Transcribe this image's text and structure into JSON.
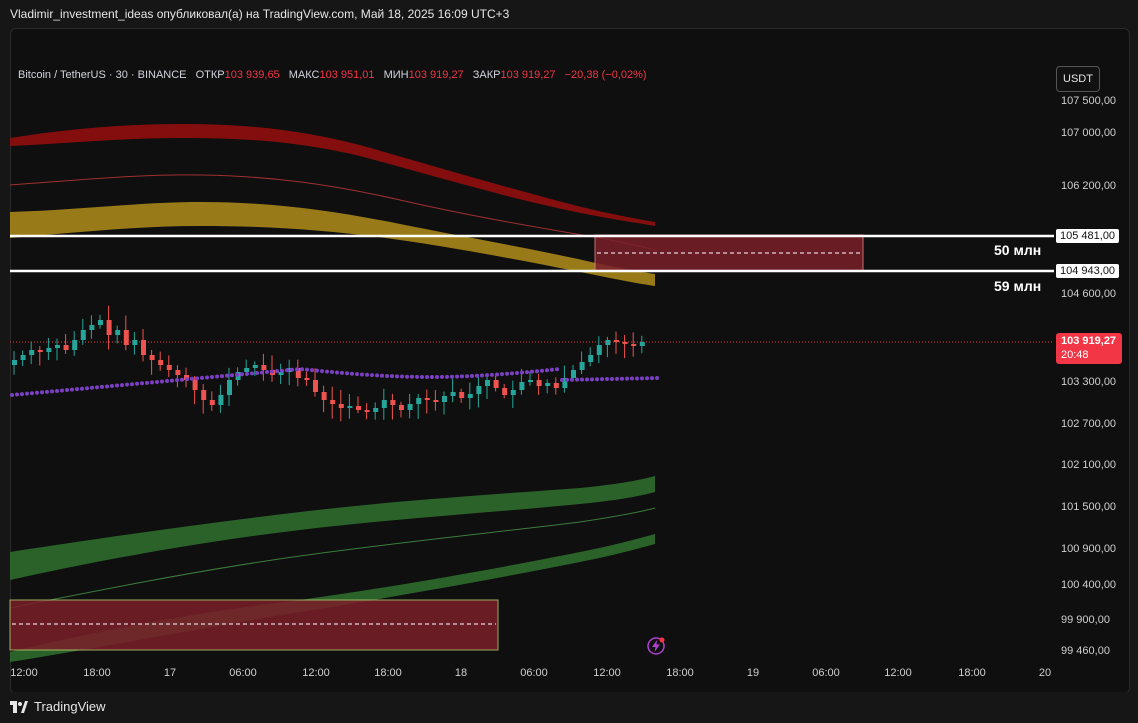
{
  "header": {
    "publish_text": "Vladimir_investment_ideas опубликовал(а) на TradingView.com, Май 18, 2025 16:09 UTC+3"
  },
  "legend": {
    "symbol": "Bitcoin / TetherUS · 30 · BINANCE",
    "open_label": "ОТКР",
    "open_value": "103 939,65",
    "high_label": "МАКС",
    "high_value": "103 951,01",
    "low_label": "МИН",
    "low_value": "103 919,27",
    "close_label": "ЗАКР",
    "close_value": "103 919,27",
    "change": "−20,38 (−0,02%)"
  },
  "currency_button": "USDT",
  "price_axis": [
    "107 500,00",
    "107 000,00",
    "106 200,00",
    "104 600,00",
    "103 300,00",
    "102 700,00",
    "102 100,00",
    "101 500,00",
    "100 900,00",
    "100 400,00",
    "99 900,00",
    "99 460,00"
  ],
  "levels": {
    "upper_value": "105 481,00",
    "lower_value": "104 943,00",
    "upper_volume": "50 млн",
    "lower_volume": "59 млн"
  },
  "current_price": {
    "value": "103 919,27",
    "countdown": "20:48"
  },
  "time_axis": [
    "12:00",
    "18:00",
    "17",
    "06:00",
    "12:00",
    "18:00",
    "18",
    "06:00",
    "12:00",
    "18:00",
    "19",
    "06:00",
    "12:00",
    "18:00",
    "20"
  ],
  "branding": {
    "logo_text": "TradingView"
  },
  "colors": {
    "bull": "#26a69a",
    "bear": "#ef5350",
    "red_band": "#8b0f0f",
    "yellow_band": "#a8861a",
    "green_band": "#2e6b2e",
    "zone_fill": "#7a1f2a",
    "vwap_dots": "#7b3fc4",
    "price_line": "#f23645"
  }
}
